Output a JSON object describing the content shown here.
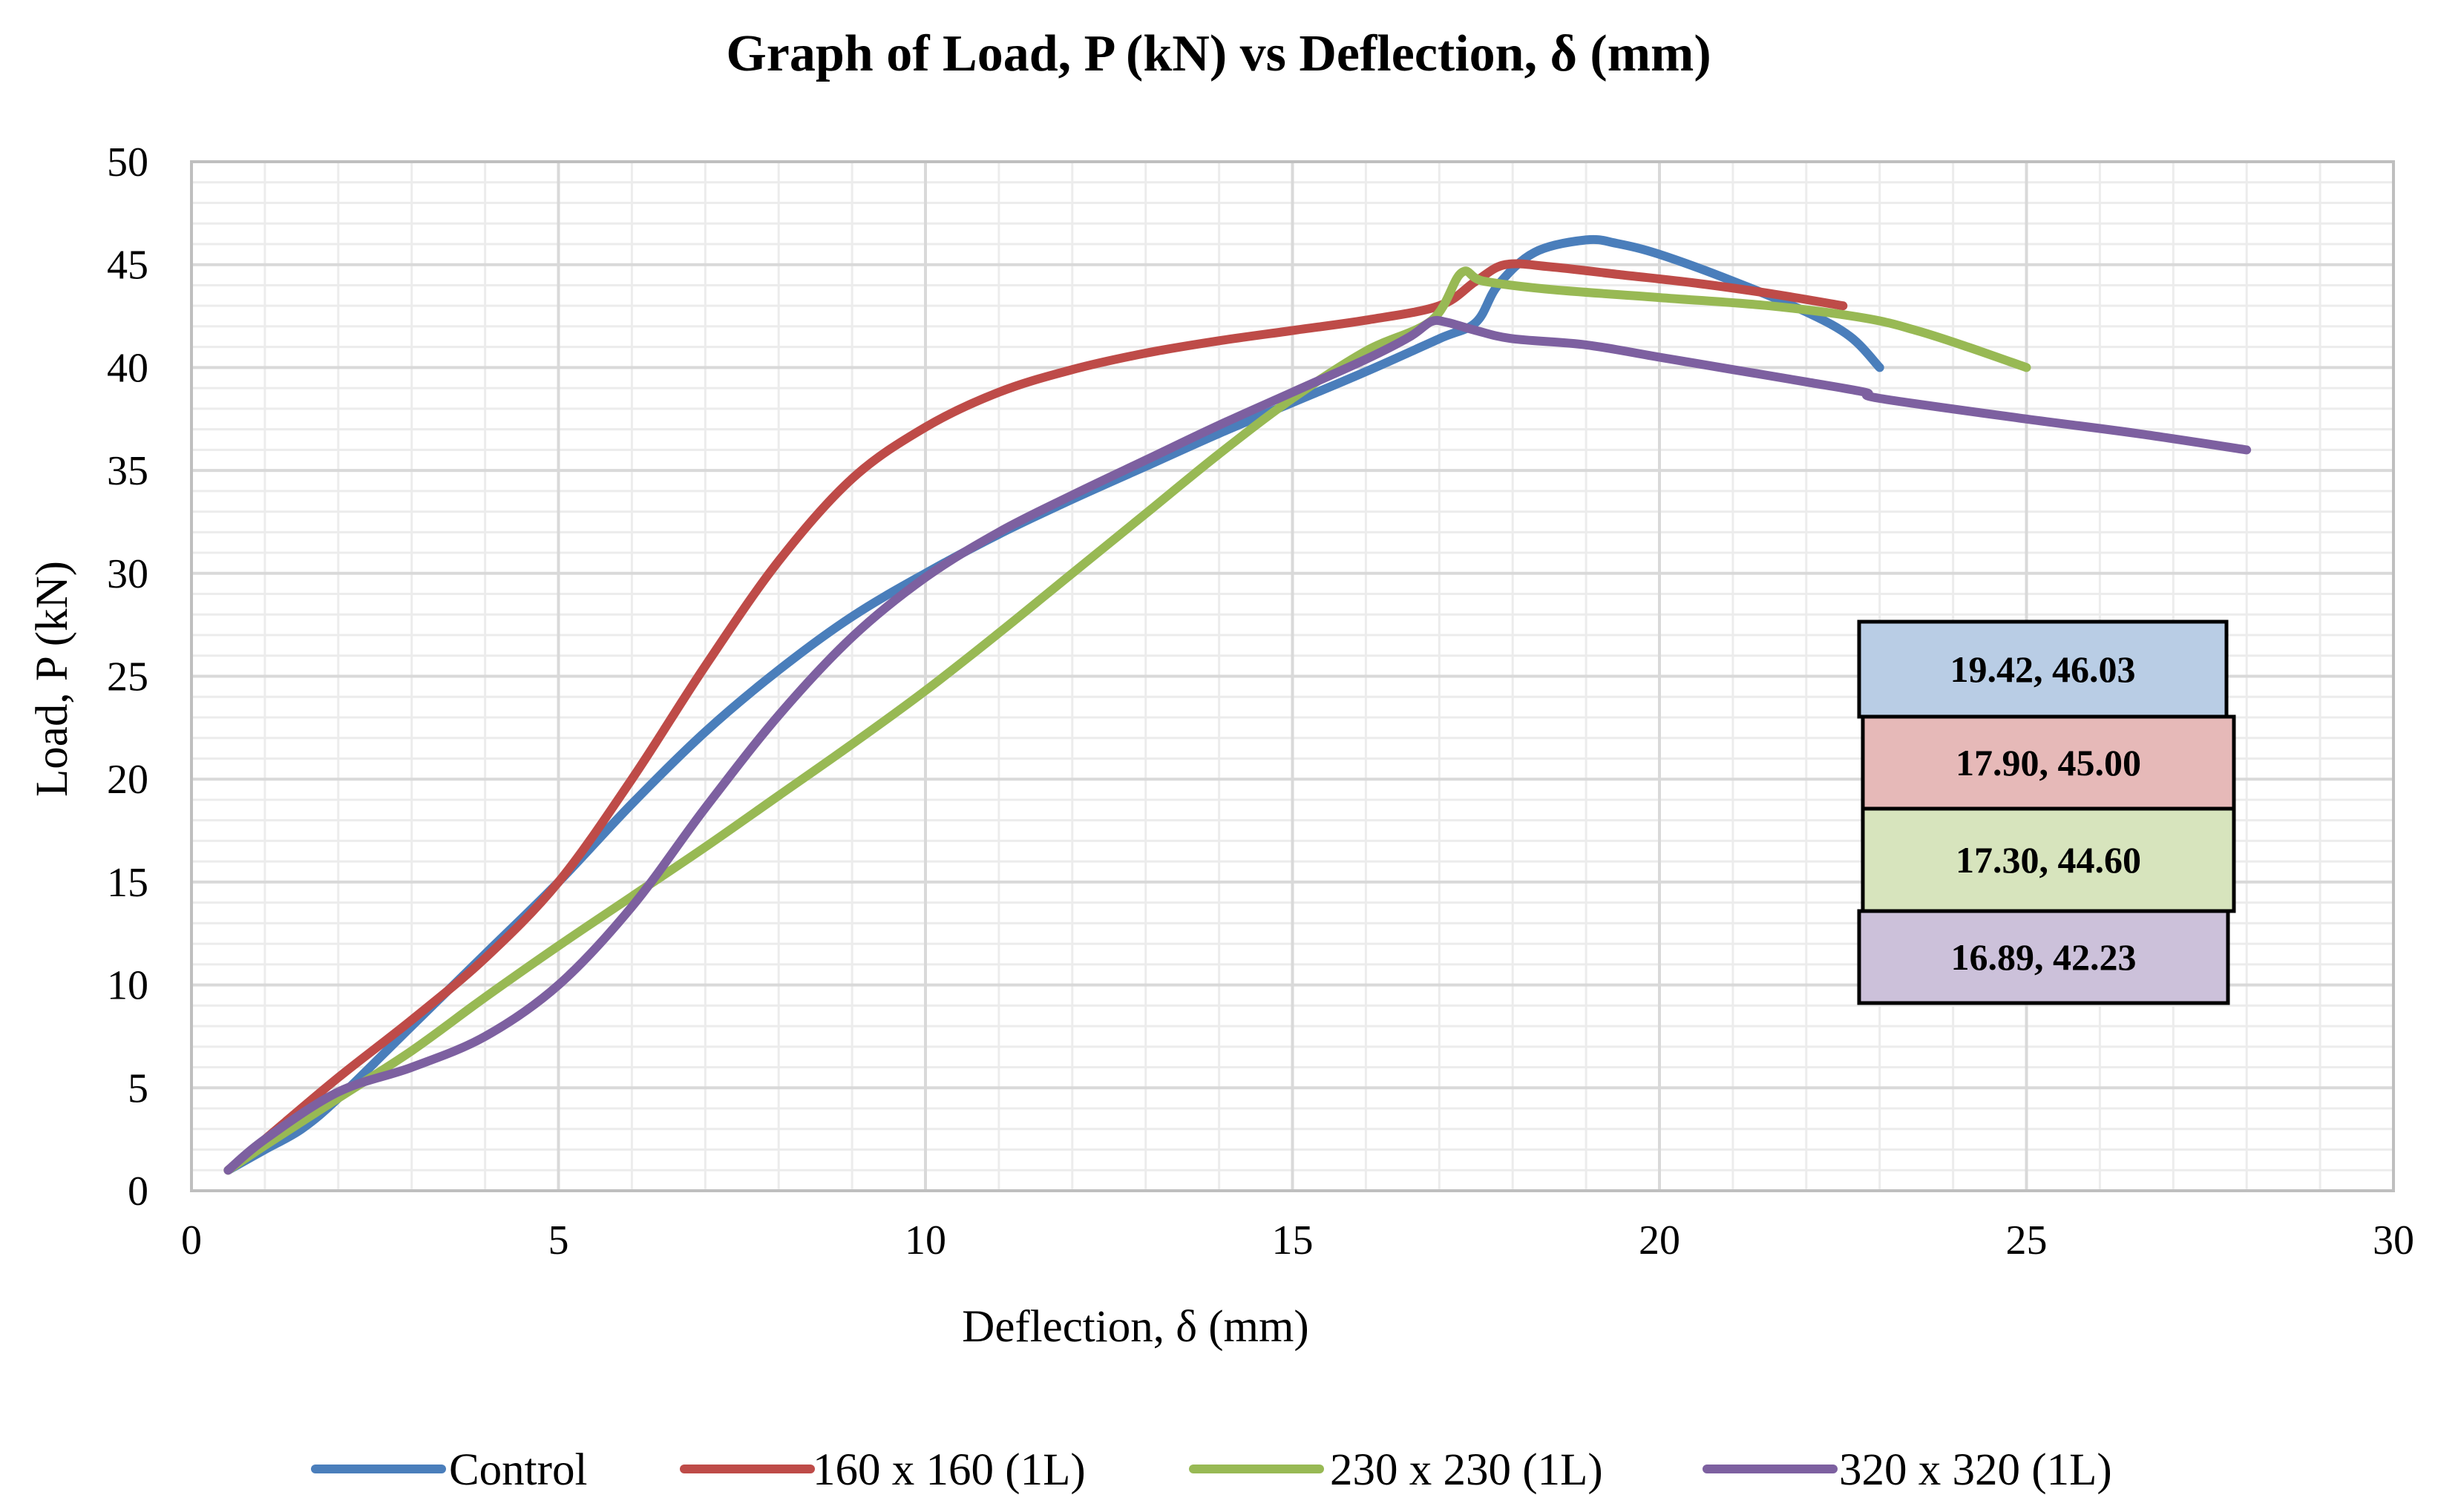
{
  "chart_data": {
    "type": "line",
    "title": "Graph of Load, P (kN) vs Deflection, δ (mm)",
    "xlabel": "Deflection, δ (mm)",
    "ylabel": "Load, P (kN)",
    "xlim": [
      0,
      30
    ],
    "ylim": [
      0,
      50
    ],
    "xticks": [
      0,
      5,
      10,
      15,
      20,
      25,
      30
    ],
    "yticks": [
      0,
      5,
      10,
      15,
      20,
      25,
      30,
      35,
      40,
      45,
      50
    ],
    "grid": true,
    "legend_position": "bottom",
    "series": [
      {
        "name": "Control",
        "color": "#4a7ebb",
        "points": [
          [
            0.5,
            1.0
          ],
          [
            1.0,
            2.0
          ],
          [
            1.5,
            3.0
          ],
          [
            2.0,
            4.5
          ],
          [
            3.0,
            8.0
          ],
          [
            4.0,
            11.5
          ],
          [
            5.0,
            15.0
          ],
          [
            6.0,
            18.8
          ],
          [
            7.0,
            22.3
          ],
          [
            8.0,
            25.3
          ],
          [
            9.0,
            27.9
          ],
          [
            10.0,
            30.0
          ],
          [
            11.0,
            31.9
          ],
          [
            12.0,
            33.6
          ],
          [
            13.0,
            35.2
          ],
          [
            14.0,
            36.8
          ],
          [
            15.0,
            38.3
          ],
          [
            16.0,
            39.8
          ],
          [
            17.0,
            41.4
          ],
          [
            17.5,
            42.2
          ],
          [
            17.8,
            44.0
          ],
          [
            18.3,
            45.6
          ],
          [
            19.0,
            46.2
          ],
          [
            19.42,
            46.03
          ],
          [
            20.0,
            45.5
          ],
          [
            21.0,
            44.2
          ],
          [
            22.0,
            42.7
          ],
          [
            22.6,
            41.5
          ],
          [
            23.0,
            40.0
          ]
        ]
      },
      {
        "name": "160 x 160 (1L)",
        "color": "#be4b48",
        "points": [
          [
            0.5,
            1.0
          ],
          [
            1.0,
            2.5
          ],
          [
            2.0,
            5.5
          ],
          [
            3.0,
            8.3
          ],
          [
            4.0,
            11.3
          ],
          [
            5.0,
            15.0
          ],
          [
            6.0,
            20.0
          ],
          [
            7.0,
            25.5
          ],
          [
            8.0,
            30.6
          ],
          [
            9.0,
            34.6
          ],
          [
            10.0,
            37.1
          ],
          [
            11.0,
            38.8
          ],
          [
            12.0,
            39.9
          ],
          [
            13.0,
            40.7
          ],
          [
            14.0,
            41.3
          ],
          [
            15.0,
            41.8
          ],
          [
            16.0,
            42.3
          ],
          [
            17.0,
            43.0
          ],
          [
            17.5,
            44.2
          ],
          [
            17.9,
            45.0
          ],
          [
            18.5,
            44.9
          ],
          [
            19.5,
            44.5
          ],
          [
            20.5,
            44.1
          ],
          [
            21.5,
            43.6
          ],
          [
            22.5,
            43.0
          ]
        ]
      },
      {
        "name": "230 x 230 (1L)",
        "color": "#98b954",
        "points": [
          [
            0.5,
            1.0
          ],
          [
            1.0,
            2.2
          ],
          [
            2.0,
            4.5
          ],
          [
            3.0,
            6.8
          ],
          [
            4.0,
            9.4
          ],
          [
            5.0,
            11.9
          ],
          [
            6.0,
            14.3
          ],
          [
            7.0,
            16.7
          ],
          [
            8.0,
            19.2
          ],
          [
            9.0,
            21.7
          ],
          [
            10.0,
            24.3
          ],
          [
            11.0,
            27.1
          ],
          [
            12.0,
            30.0
          ],
          [
            13.0,
            32.9
          ],
          [
            14.0,
            35.8
          ],
          [
            15.0,
            38.5
          ],
          [
            16.0,
            40.8
          ],
          [
            16.9,
            42.3
          ],
          [
            17.3,
            44.6
          ],
          [
            17.6,
            44.2
          ],
          [
            18.5,
            43.8
          ],
          [
            20.0,
            43.4
          ],
          [
            21.5,
            43.0
          ],
          [
            22.8,
            42.4
          ],
          [
            23.5,
            41.8
          ],
          [
            24.2,
            41.0
          ],
          [
            25.0,
            40.0
          ]
        ]
      },
      {
        "name": "320 x 320 (1L)",
        "color": "#7d60a0",
        "points": [
          [
            0.5,
            1.0
          ],
          [
            1.0,
            2.5
          ],
          [
            2.0,
            4.8
          ],
          [
            3.0,
            6.0
          ],
          [
            4.0,
            7.5
          ],
          [
            5.0,
            10.0
          ],
          [
            6.0,
            13.8
          ],
          [
            7.0,
            18.6
          ],
          [
            8.0,
            23.1
          ],
          [
            9.0,
            26.9
          ],
          [
            10.0,
            29.8
          ],
          [
            11.0,
            32.0
          ],
          [
            12.0,
            33.8
          ],
          [
            13.0,
            35.5
          ],
          [
            14.0,
            37.2
          ],
          [
            15.0,
            38.8
          ],
          [
            16.0,
            40.4
          ],
          [
            16.6,
            41.5
          ],
          [
            16.89,
            42.23
          ],
          [
            17.1,
            42.2
          ],
          [
            17.5,
            41.8
          ],
          [
            18.0,
            41.4
          ],
          [
            19.0,
            41.1
          ],
          [
            20.0,
            40.5
          ],
          [
            21.0,
            39.9
          ],
          [
            22.0,
            39.3
          ],
          [
            22.8,
            38.8
          ],
          [
            23.0,
            38.5
          ],
          [
            25.0,
            37.5
          ],
          [
            26.5,
            36.8
          ],
          [
            28.0,
            36.0
          ]
        ]
      }
    ],
    "peak_labels": [
      {
        "text": "19.42, 46.03",
        "fill": "#b9cde5"
      },
      {
        "text": "17.90, 45.00",
        "fill": "#e6b9b8"
      },
      {
        "text": "17.30, 44.60",
        "fill": "#d7e4bd"
      },
      {
        "text": "16.89, 42.23",
        "fill": "#ccc1da"
      }
    ]
  }
}
